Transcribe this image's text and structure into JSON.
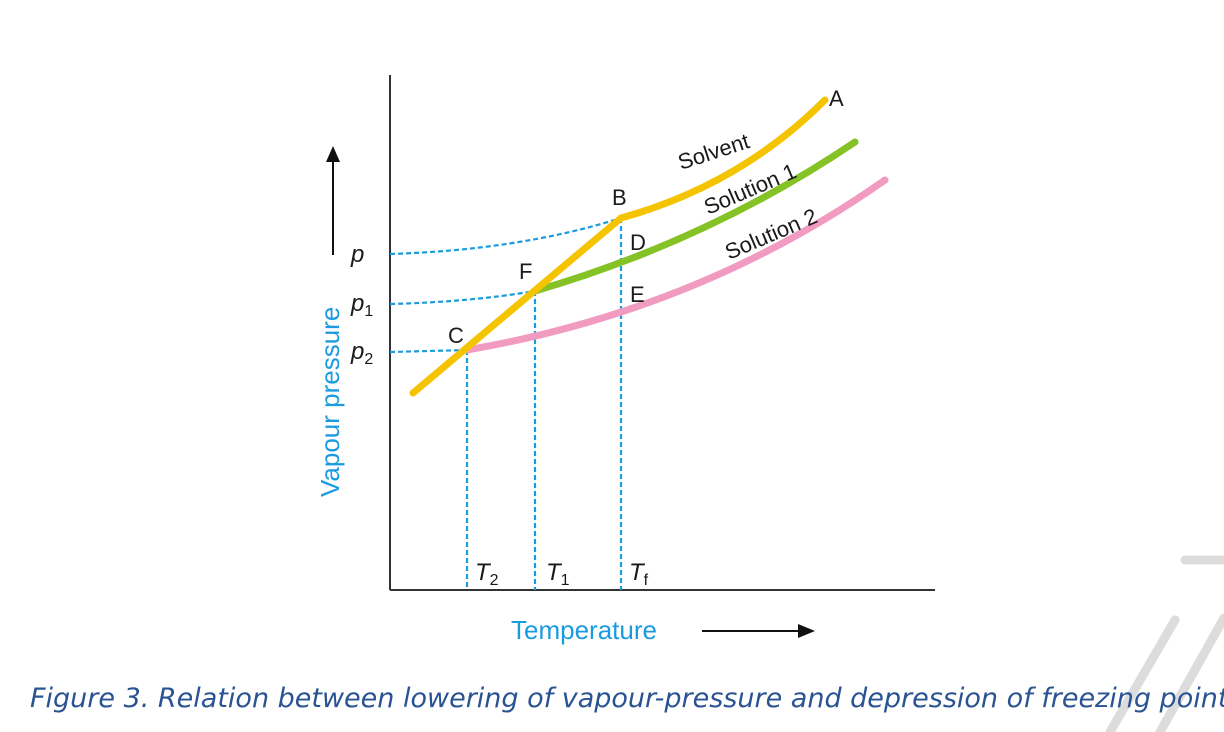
{
  "axes": {
    "ylabel": "Vapour pressure",
    "xlabel": "Temperature"
  },
  "yticks": [
    {
      "label": "p",
      "sub": ""
    },
    {
      "label": "p",
      "sub": "1"
    },
    {
      "label": "p",
      "sub": "2"
    }
  ],
  "xticks": [
    {
      "label": "T",
      "sub": "2"
    },
    {
      "label": "T",
      "sub": "1"
    },
    {
      "label": "T",
      "sub": "f"
    }
  ],
  "points": [
    "A",
    "B",
    "C",
    "D",
    "E",
    "F"
  ],
  "curves": [
    {
      "name": "Solvent",
      "color": "#f5c400"
    },
    {
      "name": "Solution 1",
      "color": "#84c225"
    },
    {
      "name": "Solution 2",
      "color": "#f29bc1"
    }
  ],
  "guide_color": "#1a9be0",
  "caption": "Figure 3. Relation between lowering of vapour-pressure and depression of freezing point."
}
